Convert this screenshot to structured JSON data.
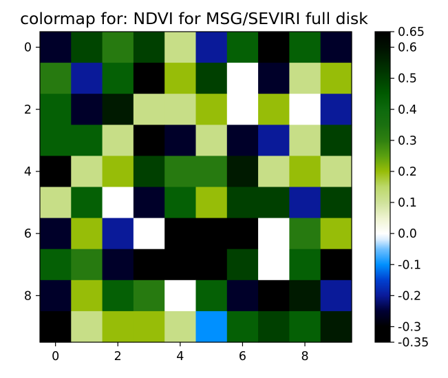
{
  "chart_data": {
    "type": "heatmap",
    "title": "colormap for: NDVI for MSG/SEVIRI full disk",
    "xlabel": "",
    "ylabel": "",
    "x_ticks": [
      0,
      2,
      4,
      6,
      8
    ],
    "y_ticks": [
      0,
      2,
      4,
      6,
      8
    ],
    "x_tick_labels": [
      "0",
      "2",
      "4",
      "6",
      "8"
    ],
    "y_tick_labels": [
      "0",
      "2",
      "4",
      "6",
      "8"
    ],
    "rows": 10,
    "cols": 10,
    "grid": false,
    "colorbar": {
      "position": "right",
      "vmin": -0.35,
      "vmax": 0.65,
      "ticks": [
        0.65,
        0.6,
        0.5,
        0.4,
        0.3,
        0.2,
        0.1,
        0.0,
        -0.1,
        -0.2,
        -0.3,
        -0.35
      ],
      "tick_labels": [
        "0.65",
        "0.6",
        "0.5",
        "0.4",
        "0.3",
        "0.2",
        "0.1",
        "0.0",
        "-0.1",
        "-0.2",
        "-0.3",
        "-0.35"
      ],
      "stops": [
        {
          "v": -0.35,
          "color": "#000000"
        },
        {
          "v": -0.3,
          "color": "#000000"
        },
        {
          "v": -0.25,
          "color": "#000033"
        },
        {
          "v": -0.2,
          "color": "#0a1a99"
        },
        {
          "v": -0.15,
          "color": "#0040d0"
        },
        {
          "v": -0.1,
          "color": "#0090ff"
        },
        {
          "v": -0.05,
          "color": "#70c0ff"
        },
        {
          "v": -0.02,
          "color": "#d8ecff"
        },
        {
          "v": 0.0,
          "color": "#ffffff"
        },
        {
          "v": 0.05,
          "color": "#eef3d0"
        },
        {
          "v": 0.1,
          "color": "#cfe29a"
        },
        {
          "v": 0.15,
          "color": "#bcd86a"
        },
        {
          "v": 0.2,
          "color": "#97bd08"
        },
        {
          "v": 0.25,
          "color": "#5aa010"
        },
        {
          "v": 0.3,
          "color": "#2f8010"
        },
        {
          "v": 0.35,
          "color": "#1a7010"
        },
        {
          "v": 0.4,
          "color": "#0d6a0d"
        },
        {
          "v": 0.45,
          "color": "#005a00"
        },
        {
          "v": 0.5,
          "color": "#004000"
        },
        {
          "v": 0.55,
          "color": "#002800"
        },
        {
          "v": 0.6,
          "color": "#001000"
        },
        {
          "v": 0.65,
          "color": "#000000"
        }
      ]
    },
    "values": [
      [
        -0.26,
        0.49,
        0.32,
        0.5,
        0.12,
        -0.2,
        0.43,
        -0.33,
        0.43,
        -0.26
      ],
      [
        0.32,
        -0.2,
        0.43,
        -0.33,
        0.2,
        0.5,
        0.0,
        -0.26,
        0.12,
        0.2
      ],
      [
        0.43,
        -0.26,
        0.58,
        0.12,
        0.12,
        0.2,
        0.0,
        0.2,
        0.0,
        -0.2
      ],
      [
        0.43,
        0.43,
        0.12,
        -0.33,
        -0.26,
        0.12,
        -0.26,
        -0.2,
        0.12,
        0.5
      ],
      [
        -0.33,
        0.12,
        0.2,
        0.5,
        0.32,
        0.32,
        0.58,
        0.12,
        0.2,
        0.12
      ],
      [
        0.12,
        0.43,
        0.0,
        -0.26,
        0.43,
        0.2,
        0.5,
        0.5,
        -0.2,
        0.5
      ],
      [
        -0.26,
        0.2,
        -0.2,
        0.0,
        -0.33,
        -0.33,
        -0.33,
        0.0,
        0.32,
        0.2
      ],
      [
        0.43,
        0.32,
        -0.26,
        -0.33,
        -0.33,
        -0.33,
        0.5,
        0.0,
        0.43,
        -0.33
      ],
      [
        -0.26,
        0.2,
        0.43,
        0.32,
        0.0,
        0.43,
        -0.26,
        -0.33,
        0.58,
        -0.2
      ],
      [
        -0.33,
        0.12,
        0.2,
        0.2,
        0.12,
        -0.1,
        0.43,
        0.5,
        0.43,
        0.58
      ]
    ]
  }
}
